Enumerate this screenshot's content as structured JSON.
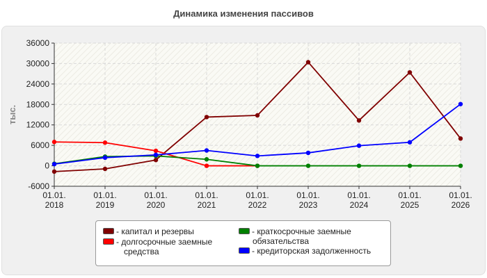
{
  "title": "Динамика изменения пассивов",
  "chart_data": {
    "type": "line",
    "title": "Динамика изменения пассивов",
    "ylabel": "тыс.",
    "xlabel": "",
    "ylim": [
      -6000,
      36000
    ],
    "yticks": [
      "-6000",
      "0",
      "6000",
      "12000",
      "18000",
      "24000",
      "30000",
      "36000"
    ],
    "categories": [
      {
        "line1": "01.01.",
        "line2": "2018"
      },
      {
        "line1": "01.01.",
        "line2": "2019"
      },
      {
        "line1": "01.01.",
        "line2": "2020"
      },
      {
        "line1": "01.01.",
        "line2": "2021"
      },
      {
        "line1": "01.01.",
        "line2": "2022"
      },
      {
        "line1": "01.01.",
        "line2": "2023"
      },
      {
        "line1": "01.01.",
        "line2": "2024"
      },
      {
        "line1": "01.01.",
        "line2": "2025"
      },
      {
        "line1": "01.01.",
        "line2": "2026"
      }
    ],
    "grid": true,
    "legend_position": "bottom",
    "series": [
      {
        "name": "капитал и резервы",
        "color": "#800000",
        "values": [
          -1700,
          -900,
          1700,
          14300,
          14800,
          30400,
          13300,
          27400,
          8000
        ]
      },
      {
        "name": "долгосрочные заемные средства",
        "color": "#ff0000",
        "values": [
          7000,
          6800,
          4400,
          0,
          0,
          null,
          null,
          null,
          null
        ]
      },
      {
        "name": "краткосрочные заемные обязательства",
        "color": "#008000",
        "values": [
          600,
          2700,
          2900,
          1900,
          0,
          0,
          0,
          0,
          0
        ]
      },
      {
        "name": "кредиторская задолженность",
        "color": "#0000ff",
        "values": [
          500,
          2400,
          3200,
          4500,
          2900,
          3800,
          5900,
          6900,
          18100
        ]
      }
    ]
  },
  "legend": {
    "items": [
      {
        "label": "- капитал и резервы",
        "color": "#800000"
      },
      {
        "label": "- долгосрочные заемные",
        "label2": "средства",
        "color": "#ff0000"
      },
      {
        "label": "- краткосрочные заемные",
        "label2": "обязательства",
        "color": "#008000"
      },
      {
        "label": "- кредиторская задолженность",
        "color": "#0000ff"
      }
    ]
  }
}
